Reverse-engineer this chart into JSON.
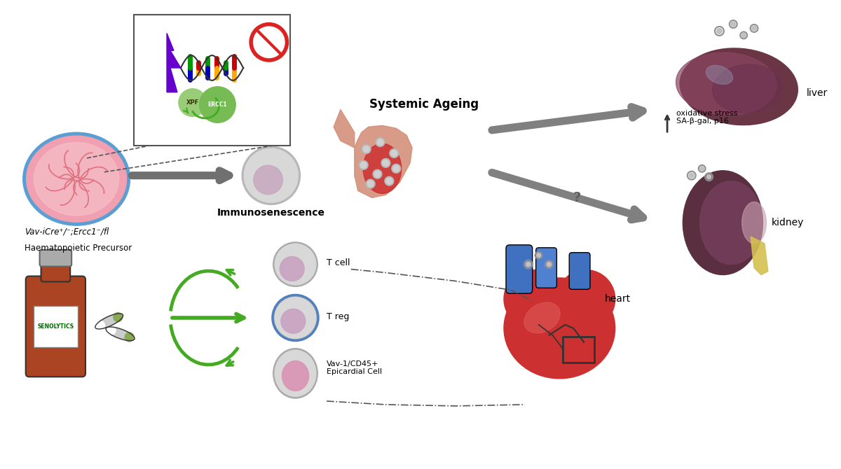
{
  "title": "",
  "background_color": "#ffffff",
  "labels": {
    "vav": "Vav-iCre⁺/⁻;Ercc1⁻/fl",
    "haem": "Haematopoietic Precursor",
    "senolytics": "SENOLYTICS",
    "systemic_ageing": "Systemic Ageing",
    "immunosenescence": "Immunosenescence",
    "liver": "liver",
    "kidney": "kidney",
    "heart": "heart",
    "t_cell": "T cell",
    "t_reg": "T reg",
    "epicardial": "Vav-1/CD45+\nEpicardial Cell",
    "oxidative": "oxidative stress\nSA-β-gal, p16",
    "ercc1": "ERCC1",
    "xpf": "XPF"
  },
  "colors": {
    "bg": "#ffffff",
    "cell_outer": "#b0b0b0",
    "cell_inner": "#d4a0c0",
    "cell_blue_ring": "#6090c0",
    "arrow_dark": "#808080",
    "arrow_green": "#50a030",
    "dna_colors": [
      "#cc0000",
      "#0000cc",
      "#ffcc00",
      "#009900"
    ],
    "no_sign": "#cc0000",
    "lightning": "#6600cc",
    "liver_color": "#7a4050",
    "kidney_dark": "#5a3040",
    "heart_red": "#cc3030",
    "blood_vessel": "#d08070",
    "label_color": "#000000",
    "senolytics_green": "#007700",
    "box_border": "#333333",
    "ercc1_green": "#88cc66",
    "arrow_question": "#888888"
  }
}
